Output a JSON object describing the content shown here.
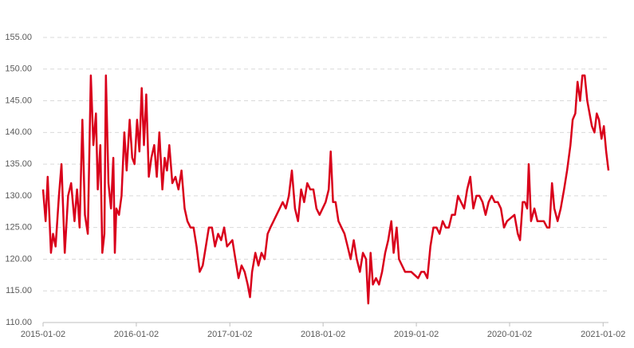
{
  "chart_data": {
    "type": "line",
    "color": "#d9001b",
    "grid": true,
    "ylim": [
      110,
      155
    ],
    "yticks": [
      {
        "value": 110,
        "label": "110.00"
      },
      {
        "value": 115,
        "label": "115.00"
      },
      {
        "value": 120,
        "label": "120.00"
      },
      {
        "value": 125,
        "label": "125.00"
      },
      {
        "value": 130,
        "label": "130.00"
      },
      {
        "value": 135,
        "label": "135.00"
      },
      {
        "value": 140,
        "label": "140.00"
      },
      {
        "value": 145,
        "label": "145.00"
      },
      {
        "value": 150,
        "label": "150.00"
      },
      {
        "value": 155,
        "label": "155.00"
      }
    ],
    "xlim": [
      "2015-01-02",
      "2021-01-23"
    ],
    "xticks": [
      "2015-01-02",
      "2016-01-02",
      "2017-01-02",
      "2018-01-02",
      "2019-01-02",
      "2020-01-02",
      "2021-01-02"
    ],
    "x": [
      "2015-01-02",
      "2015-01-12",
      "2015-01-20",
      "2015-02-02",
      "2015-02-10",
      "2015-02-20",
      "2015-03-05",
      "2015-03-15",
      "2015-03-28",
      "2015-04-10",
      "2015-04-22",
      "2015-05-05",
      "2015-05-15",
      "2015-05-25",
      "2015-06-05",
      "2015-06-15",
      "2015-06-26",
      "2015-07-08",
      "2015-07-18",
      "2015-07-28",
      "2015-08-04",
      "2015-08-14",
      "2015-08-22",
      "2015-08-30",
      "2015-09-05",
      "2015-09-15",
      "2015-09-25",
      "2015-10-04",
      "2015-10-10",
      "2015-10-16",
      "2015-10-26",
      "2015-11-05",
      "2015-11-16",
      "2015-11-25",
      "2015-12-07",
      "2015-12-17",
      "2015-12-26",
      "2016-01-05",
      "2016-01-14",
      "2016-01-23",
      "2016-02-01",
      "2016-02-10",
      "2016-02-20",
      "2016-03-01",
      "2016-03-12",
      "2016-03-22",
      "2016-04-01",
      "2016-04-13",
      "2016-04-22",
      "2016-05-01",
      "2016-05-10",
      "2016-05-22",
      "2016-06-03",
      "2016-06-15",
      "2016-06-27",
      "2016-07-09",
      "2016-07-20",
      "2016-08-01",
      "2016-08-13",
      "2016-08-25",
      "2016-09-06",
      "2016-09-18",
      "2016-09-30",
      "2016-10-12",
      "2016-10-24",
      "2016-11-05",
      "2016-11-17",
      "2016-11-29",
      "2016-12-11",
      "2016-12-22",
      "2017-01-12",
      "2017-01-24",
      "2017-02-05",
      "2017-02-17",
      "2017-03-01",
      "2017-03-13",
      "2017-03-22",
      "2017-03-30",
      "2017-04-12",
      "2017-04-24",
      "2017-05-06",
      "2017-05-18",
      "2017-05-30",
      "2017-06-10",
      "2017-06-22",
      "2017-07-04",
      "2017-07-16",
      "2017-07-28",
      "2017-08-09",
      "2017-08-21",
      "2017-09-02",
      "2017-09-14",
      "2017-09-26",
      "2017-10-08",
      "2017-10-20",
      "2017-11-01",
      "2017-11-13",
      "2017-11-25",
      "2017-12-07",
      "2017-12-19",
      "2018-01-12",
      "2018-01-24",
      "2018-02-01",
      "2018-02-10",
      "2018-02-20",
      "2018-03-03",
      "2018-03-15",
      "2018-03-27",
      "2018-04-08",
      "2018-04-20",
      "2018-05-02",
      "2018-05-14",
      "2018-05-26",
      "2018-06-07",
      "2018-06-19",
      "2018-06-28",
      "2018-07-07",
      "2018-07-16",
      "2018-07-28",
      "2018-08-09",
      "2018-08-21",
      "2018-09-02",
      "2018-09-14",
      "2018-09-26",
      "2018-10-05",
      "2018-10-17",
      "2018-10-26",
      "2018-11-07",
      "2018-11-19",
      "2018-12-01",
      "2018-12-13",
      "2019-01-09",
      "2019-01-21",
      "2019-02-02",
      "2019-02-14",
      "2019-02-26",
      "2019-03-10",
      "2019-03-22",
      "2019-04-03",
      "2019-04-15",
      "2019-04-27",
      "2019-05-09",
      "2019-05-21",
      "2019-06-02",
      "2019-06-14",
      "2019-06-26",
      "2019-07-08",
      "2019-07-20",
      "2019-08-01",
      "2019-08-13",
      "2019-08-25",
      "2019-09-06",
      "2019-09-18",
      "2019-09-30",
      "2019-10-12",
      "2019-10-24",
      "2019-11-05",
      "2019-11-17",
      "2019-11-29",
      "2019-12-11",
      "2019-12-23",
      "2020-01-21",
      "2020-02-03",
      "2020-02-12",
      "2020-02-22",
      "2020-03-02",
      "2020-03-11",
      "2020-03-17",
      "2020-03-26",
      "2020-04-08",
      "2020-04-20",
      "2020-05-03",
      "2020-05-15",
      "2020-05-28",
      "2020-06-06",
      "2020-06-16",
      "2020-06-25",
      "2020-07-08",
      "2020-07-20",
      "2020-08-02",
      "2020-08-14",
      "2020-08-27",
      "2020-09-05",
      "2020-09-15",
      "2020-09-24",
      "2020-10-04",
      "2020-10-13",
      "2020-10-22",
      "2020-11-01",
      "2020-11-10",
      "2020-11-19",
      "2020-11-29",
      "2020-12-08",
      "2020-12-17",
      "2020-12-27",
      "2021-01-05",
      "2021-01-14",
      "2021-01-23"
    ],
    "values": [
      131,
      126,
      133,
      121,
      124,
      122,
      130,
      135,
      121,
      130,
      132,
      126,
      131,
      125,
      142,
      127,
      124,
      149,
      138,
      143,
      131,
      138,
      121,
      124,
      149,
      132,
      128,
      136,
      121,
      128,
      127,
      130,
      140,
      134,
      142,
      136,
      135,
      142,
      137,
      147,
      138,
      146,
      133,
      136,
      138,
      133,
      140,
      131,
      136,
      134,
      138,
      132,
      133,
      131,
      134,
      128,
      126,
      125,
      125,
      122,
      118,
      119,
      122,
      125,
      125,
      122,
      124,
      123,
      125,
      122,
      123,
      120,
      117,
      119,
      118,
      116,
      114,
      118,
      121,
      119,
      121,
      120,
      124,
      125,
      126,
      127,
      128,
      129,
      128,
      130,
      134,
      128,
      126,
      131,
      129,
      132,
      131,
      131,
      128,
      127,
      129,
      131,
      137,
      129,
      129,
      126,
      125,
      124,
      122,
      120,
      123,
      120,
      118,
      121,
      120,
      113,
      121,
      116,
      117,
      116,
      118,
      121,
      123,
      126,
      121,
      125,
      120,
      119,
      118,
      118,
      118,
      117,
      118,
      118,
      117,
      122,
      125,
      125,
      124,
      126,
      125,
      125,
      127,
      127,
      130,
      129,
      128,
      131,
      133,
      128,
      130,
      130,
      129,
      127,
      129,
      130,
      129,
      129,
      128,
      125,
      126,
      127,
      124,
      123,
      129,
      129,
      128,
      135,
      126,
      128,
      126,
      126,
      126,
      125,
      125,
      132,
      128,
      126,
      128,
      131,
      134,
      138,
      142,
      143,
      148,
      145,
      149,
      149,
      145,
      143,
      141,
      140,
      143,
      142,
      139,
      141,
      137,
      134
    ]
  }
}
